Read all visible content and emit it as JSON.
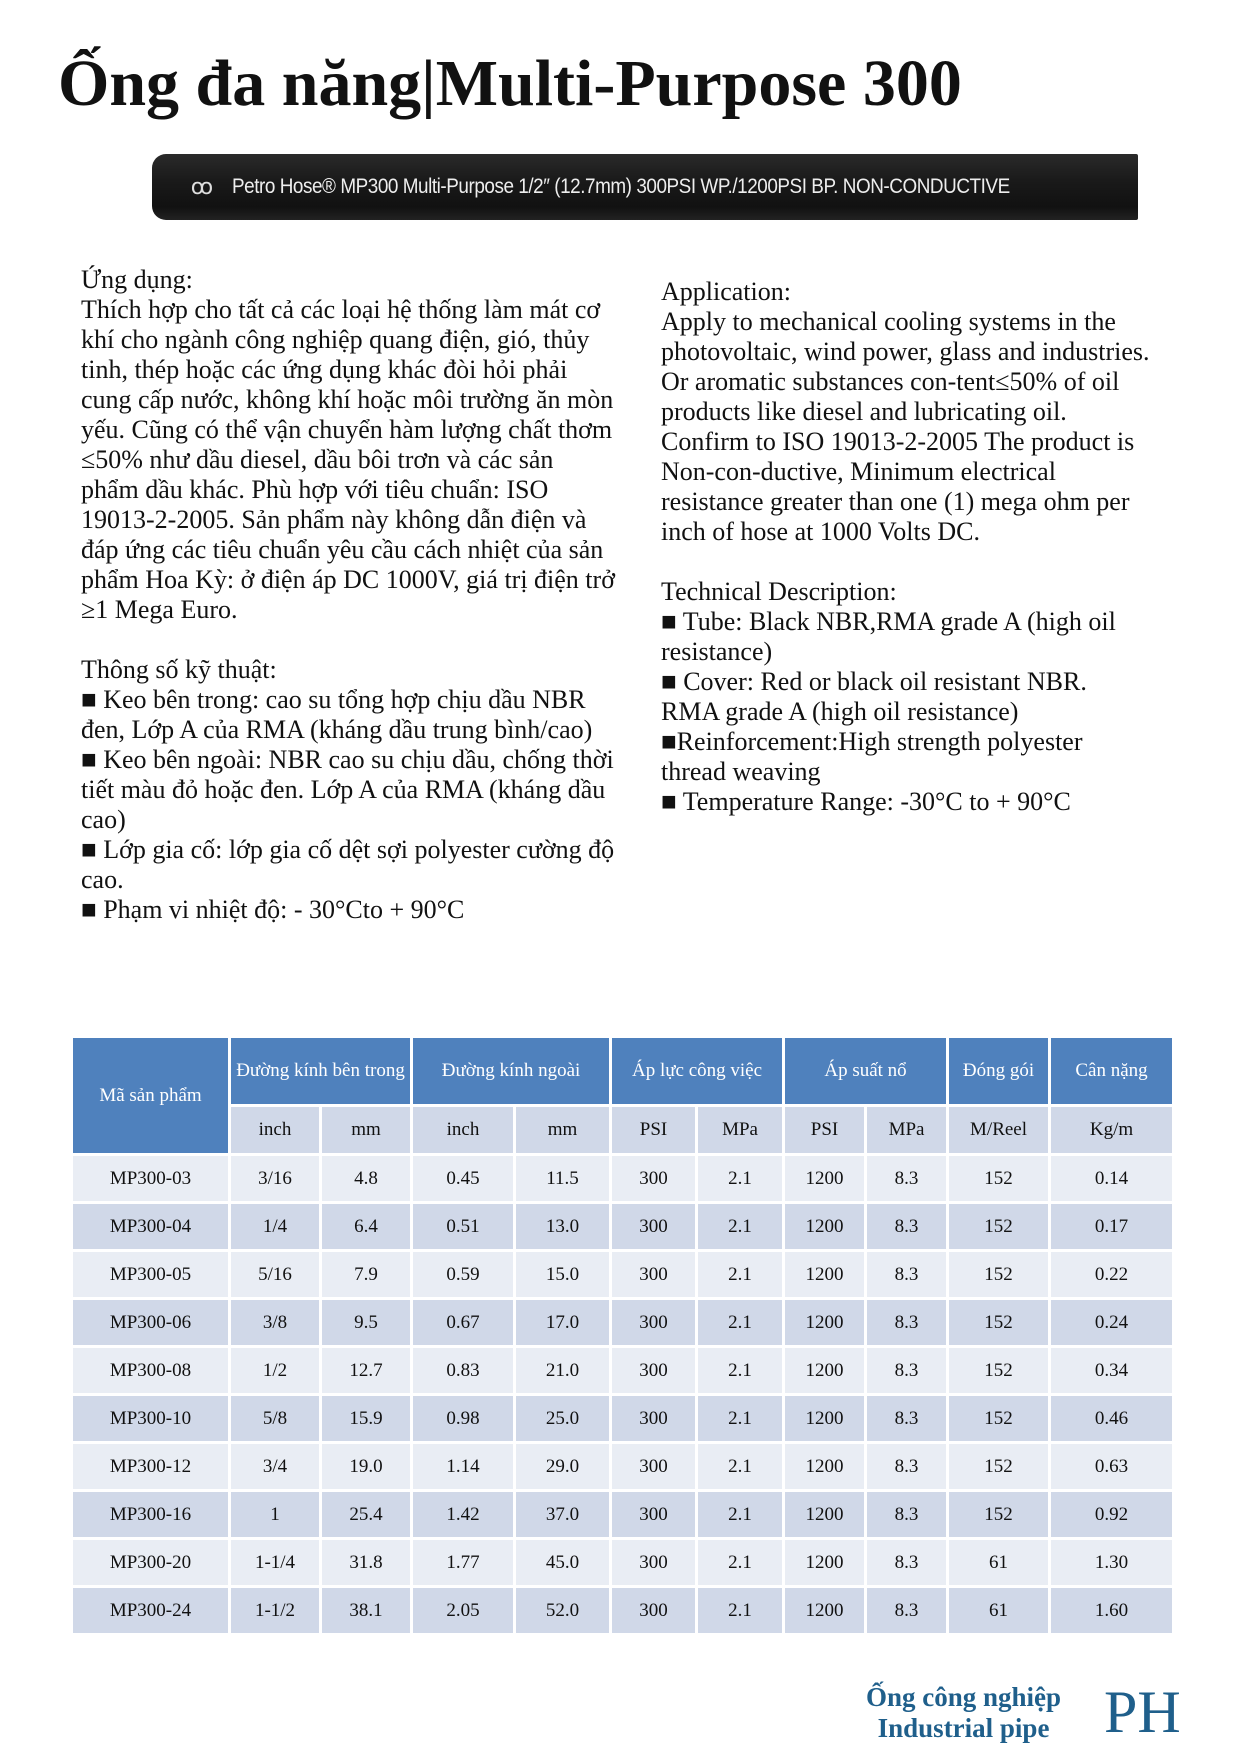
{
  "title": "Ống đa năng|Multi-Purpose 300",
  "hose_print": "Petro Hose® MP300 Multi-Purpose 1/2″ (12.7mm) 300PSI WP./1200PSI BP. NON-CONDUCTIVE",
  "hose_logo_text": "Petro Hose",
  "left": {
    "app_heading": "Ứng dụng:",
    "app_body": "Thích hợp cho tất cả các loại hệ thống làm mát cơ khí cho ngành công nghiệp quang điện, gió, thủy tinh, thép hoặc các ứng dụng khác đòi hỏi phải cung cấp nước, không khí hoặc môi trường ăn mòn yếu. Cũng có thể vận chuyển hàm lượng chất thơm ≤50% như dầu diesel, dầu bôi trơn và các sản phẩm dầu khác. Phù hợp với tiêu chuẩn: ISO 19013-2-2005. Sản phẩm này không dẫn điện và đáp ứng các tiêu chuẩn yêu cầu cách nhiệt của sản phẩm Hoa Kỳ: ở điện áp DC 1000V, giá trị điện trở ≥1 Mega Euro.",
    "spec_heading": "Thông số kỹ thuật:",
    "specs": [
      "■ Keo bên trong: cao su tổng hợp chịu dầu NBR đen, Lớp A của RMA (kháng dầu trung bình/cao)",
      "■ Keo bên ngoài: NBR cao su chịu dầu, chống thời tiết màu đỏ hoặc đen. Lớp A của RMA (kháng dầu cao)",
      "■ Lớp gia cố: lớp gia cố dệt sợi polyester cường độ cao.",
      "■ Phạm vi nhiệt độ: - 30°Cto + 90°C"
    ]
  },
  "right": {
    "app_heading": "Application:",
    "app_body": "Apply to mechanical cooling systems in the photovoltaic, wind power, glass and industries. Or aromatic substances con-tent≤50% of oil products like diesel and lubricating oil. Confirm to ISO 19013-2-2005 The product is Non-con-ductive, Minimum electrical resistance greater than one (1) mega ohm per inch of hose at 1000 Volts DC.",
    "spec_heading": "Technical Description:",
    "specs": [
      "■ Tube: Black NBR,RMA grade A (high oil resistance)",
      "■ Cover: Red or black oil resistant NBR. RMA grade A (high oil resistance)",
      "■Reinforcement:High strength polyester thread weaving",
      "■ Temperature Range: -30°C to + 90°C"
    ]
  },
  "table": {
    "headers": [
      "Mã sản phẩm",
      "Đường kính bên trong",
      "Đường kính ngoài",
      "Áp lực công việc",
      "Áp suất nổ",
      "Đóng gói",
      "Cân nặng"
    ],
    "subheaders": [
      "inch",
      "mm",
      "inch",
      "mm",
      "PSI",
      "MPa",
      "PSI",
      "MPa",
      "M/Reel",
      "Kg/m"
    ],
    "rows": [
      [
        "MP300-03",
        "3/16",
        "4.8",
        "0.45",
        "11.5",
        "300",
        "2.1",
        "1200",
        "8.3",
        "152",
        "0.14"
      ],
      [
        "MP300-04",
        "1/4",
        "6.4",
        "0.51",
        "13.0",
        "300",
        "2.1",
        "1200",
        "8.3",
        "152",
        "0.17"
      ],
      [
        "MP300-05",
        "5/16",
        "7.9",
        "0.59",
        "15.0",
        "300",
        "2.1",
        "1200",
        "8.3",
        "152",
        "0.22"
      ],
      [
        "MP300-06",
        "3/8",
        "9.5",
        "0.67",
        "17.0",
        "300",
        "2.1",
        "1200",
        "8.3",
        "152",
        "0.24"
      ],
      [
        "MP300-08",
        "1/2",
        "12.7",
        "0.83",
        "21.0",
        "300",
        "2.1",
        "1200",
        "8.3",
        "152",
        "0.34"
      ],
      [
        "MP300-10",
        "5/8",
        "15.9",
        "0.98",
        "25.0",
        "300",
        "2.1",
        "1200",
        "8.3",
        "152",
        "0.46"
      ],
      [
        "MP300-12",
        "3/4",
        "19.0",
        "1.14",
        "29.0",
        "300",
        "2.1",
        "1200",
        "8.3",
        "152",
        "0.63"
      ],
      [
        "MP300-16",
        "1",
        "25.4",
        "1.42",
        "37.0",
        "300",
        "2.1",
        "1200",
        "8.3",
        "152",
        "0.92"
      ],
      [
        "MP300-20",
        "1-1/4",
        "31.8",
        "1.77",
        "45.0",
        "300",
        "2.1",
        "1200",
        "8.3",
        "61",
        "1.30"
      ],
      [
        "MP300-24",
        "1-1/2",
        "38.1",
        "2.05",
        "52.0",
        "300",
        "2.1",
        "1200",
        "8.3",
        "61",
        "1.60"
      ]
    ]
  },
  "footer": {
    "line1": "Ống công nghiệp",
    "line2": "Industrial pipe",
    "logo": "PH"
  },
  "colors": {
    "header": "#4f81bd",
    "subheader": "#d0d8e8",
    "row_light": "#e9edf4",
    "footer": "#1f5f8b"
  }
}
